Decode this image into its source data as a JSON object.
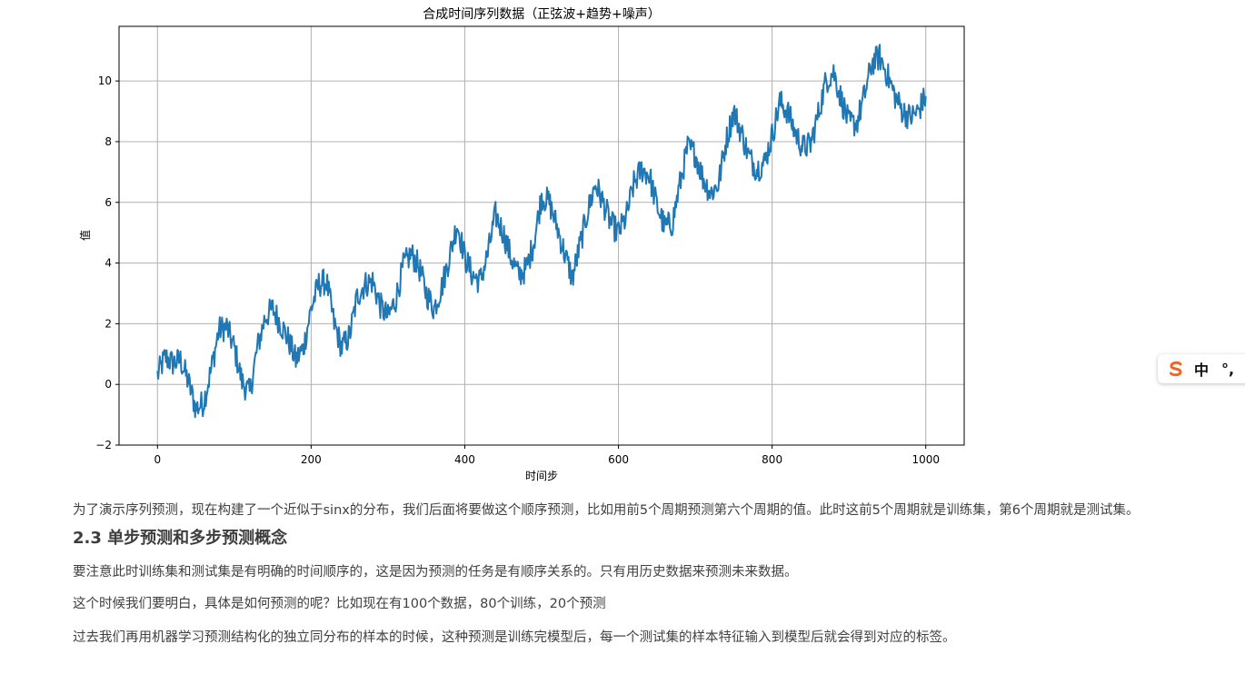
{
  "chart_data": {
    "type": "line",
    "title": "合成时间序列数据（正弦波+趋势+噪声）",
    "xlabel": "时间步",
    "ylabel": "值",
    "xlim": [
      -50,
      1050
    ],
    "ylim": [
      -2,
      11.8
    ],
    "xticks": [
      0,
      200,
      400,
      600,
      800,
      1000
    ],
    "yticks": [
      -2,
      0,
      2,
      4,
      6,
      8,
      10
    ],
    "grid": true,
    "color": "#1f77b4",
    "series": [
      {
        "x": [
          0,
          10,
          20,
          30,
          40,
          50,
          60,
          70,
          80,
          90,
          100,
          110,
          120,
          130,
          140,
          150,
          160,
          170,
          180,
          190,
          200,
          210,
          220,
          230,
          240,
          250,
          260,
          270,
          280,
          290,
          300,
          310,
          320,
          330,
          340,
          350,
          360,
          370,
          380,
          390,
          400,
          410,
          420,
          430,
          440,
          450,
          460,
          470,
          480,
          490,
          500,
          510,
          520,
          530,
          540,
          550,
          560,
          570,
          580,
          590,
          600,
          610,
          620,
          630,
          640,
          650,
          660,
          670,
          680,
          690,
          700,
          710,
          720,
          730,
          740,
          750,
          760,
          770,
          780,
          790,
          800,
          810,
          820,
          830,
          840,
          850,
          860,
          870,
          880,
          890,
          900,
          910,
          920,
          930,
          940,
          950,
          960,
          970,
          980,
          990,
          1000
        ],
        "y": [
          0.3,
          0.9,
          0.7,
          0.8,
          0.1,
          -0.8,
          -0.6,
          0.5,
          1.8,
          1.9,
          1.2,
          0.1,
          -0.3,
          1.2,
          2.2,
          2.5,
          2.0,
          1.5,
          0.8,
          1.2,
          2.5,
          3.3,
          3.4,
          2.0,
          1.2,
          1.6,
          2.9,
          3.3,
          3.4,
          2.6,
          2.2,
          2.8,
          3.9,
          4.3,
          3.9,
          3.0,
          2.5,
          3.2,
          4.2,
          5.3,
          4.2,
          3.6,
          3.4,
          4.3,
          5.6,
          5.0,
          4.2,
          3.6,
          3.8,
          4.7,
          6.2,
          6.0,
          5.2,
          4.3,
          3.5,
          4.6,
          5.7,
          6.6,
          6.0,
          5.3,
          5.0,
          5.5,
          6.6,
          7.1,
          6.9,
          5.9,
          5.2,
          5.3,
          6.6,
          7.8,
          7.6,
          6.8,
          6.3,
          6.6,
          8.0,
          9.0,
          8.3,
          7.5,
          7.1,
          7.3,
          8.2,
          9.3,
          9.0,
          8.3,
          7.8,
          7.9,
          8.9,
          10.0,
          10.3,
          9.4,
          8.6,
          8.6,
          9.5,
          10.6,
          10.8,
          10.2,
          9.5,
          9.0,
          8.8,
          9.0,
          9.5
        ]
      }
    ]
  },
  "article": {
    "intro": "为了演示序列预测，现在构建了一个近似于sinx的分布，我们后面将要做这个顺序预测，比如用前5个周期预测第六个周期的值。此时这前5个周期就是训练集，第6个周期就是测试集。",
    "section_title": "2.3 单步预测和多步预测概念",
    "p1": "要注意此时训练集和测试集是有明确的时间顺序的，这是因为预测的任务是有顺序关系的。只有用历史数据来预测未来数据。",
    "p2": "这个时候我们要明白，具体是如何预测的呢？比如现在有100个数据，80个训练，20个预测",
    "p3": "过去我们再用机器学习预测结构化的独立同分布的样本的时候，这种预测是训练完模型后，每一个测试集的样本特征输入到模型后就会得到对应的标签。"
  },
  "ime": {
    "lang": "中",
    "punct": "°,",
    "logo_color": "#f26522",
    "logo_icon": "sogou-s-icon"
  }
}
